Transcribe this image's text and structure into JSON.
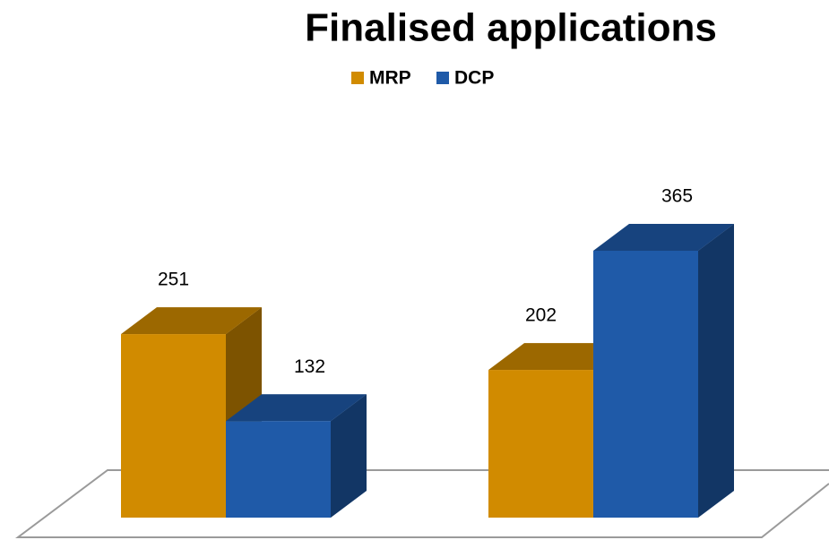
{
  "chart_data": {
    "type": "bar3d",
    "title": "Finalised applications",
    "categories": [
      null,
      null
    ],
    "series": [
      {
        "name": "MRP",
        "color": "#d18b00",
        "values": [
          251,
          202
        ]
      },
      {
        "name": "DCP",
        "color": "#1f5aa8",
        "values": [
          132,
          365
        ]
      }
    ],
    "legend": "top"
  }
}
